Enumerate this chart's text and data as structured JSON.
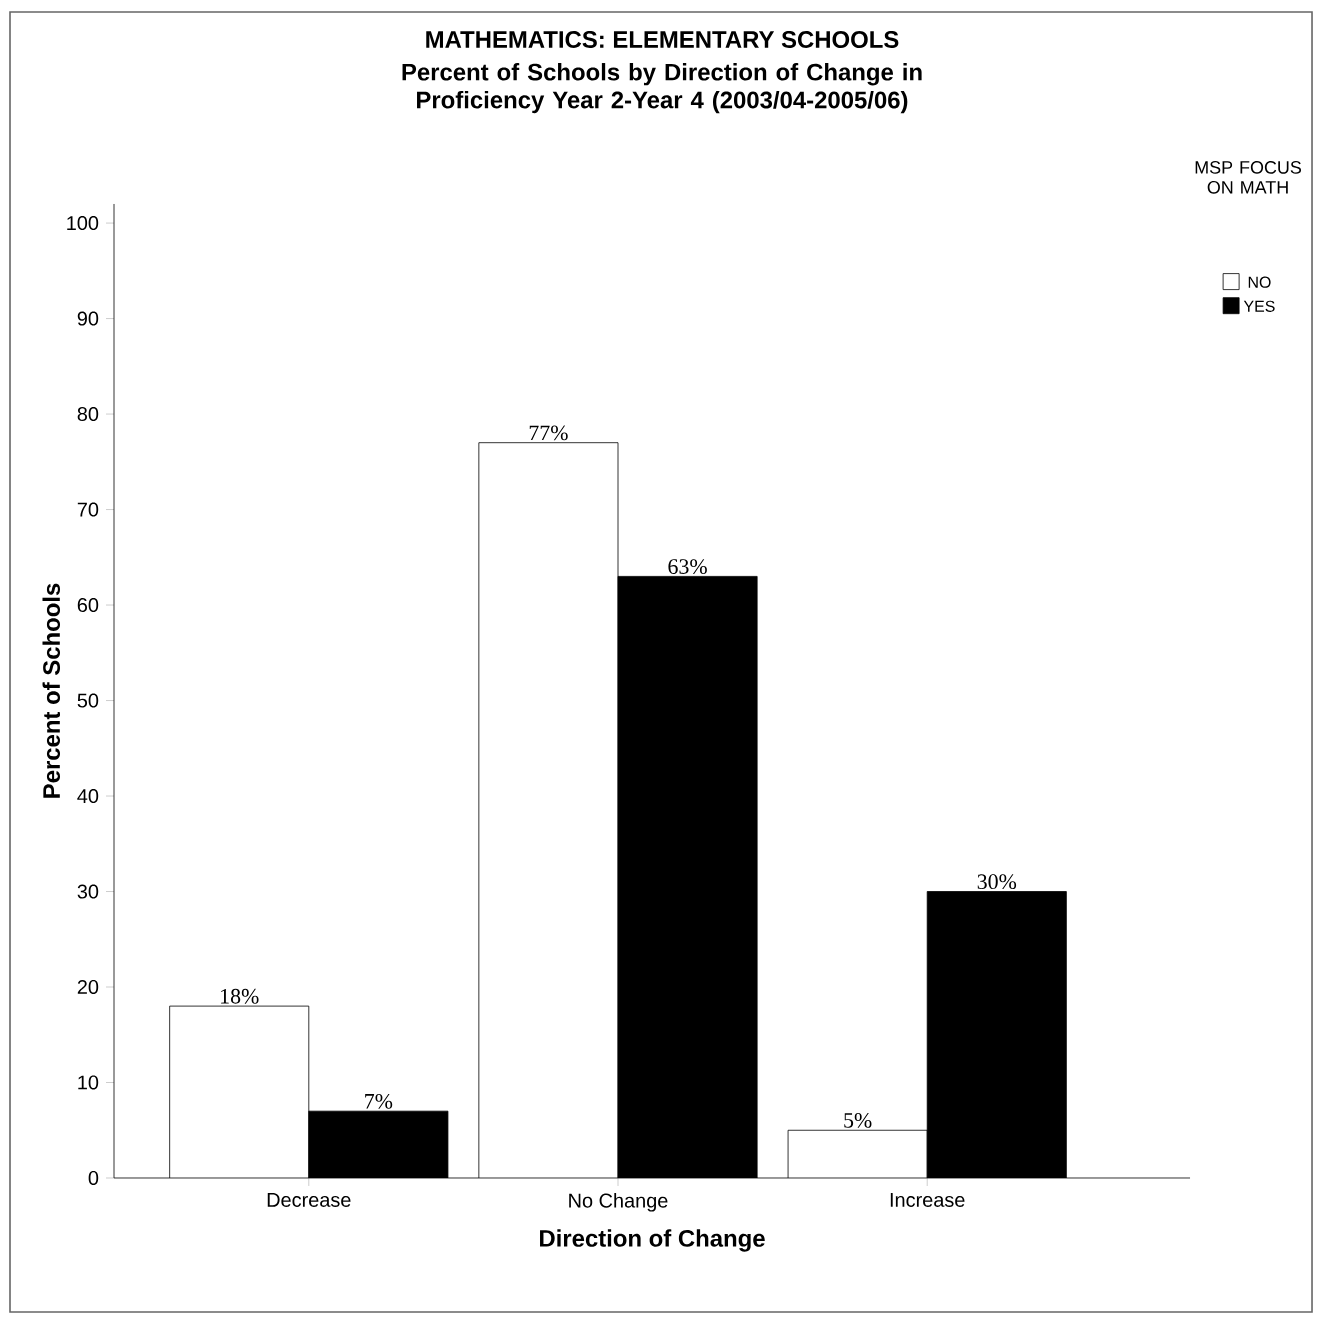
{
  "chart_data": {
    "type": "bar",
    "title": "MATHEMATICS: ELEMENTARY SCHOOLS",
    "subtitle": "Percent of Schools by Direction of Change in Proficiency Year 2-Year 4 (2003/04-2005/06)",
    "xlabel": "Direction of Change",
    "ylabel": "Percent of Schools",
    "legend_title": "MSP FOCUS ON MATH",
    "categories": [
      "Decrease",
      "No Change",
      "Increase"
    ],
    "series": [
      {
        "name": "NO",
        "color": "#ffffff",
        "values": [
          18,
          77,
          5
        ],
        "value_labels": [
          "18%",
          "77%",
          "5%"
        ]
      },
      {
        "name": "YES",
        "color": "#000000",
        "values": [
          7,
          63,
          30
        ],
        "value_labels": [
          "7%",
          "63%",
          "30%"
        ]
      }
    ],
    "ylim": [
      0,
      102
    ],
    "yticks": [
      0,
      10,
      20,
      30,
      40,
      50,
      60,
      70,
      80,
      90,
      100
    ],
    "grid": false,
    "legend": "top right"
  }
}
